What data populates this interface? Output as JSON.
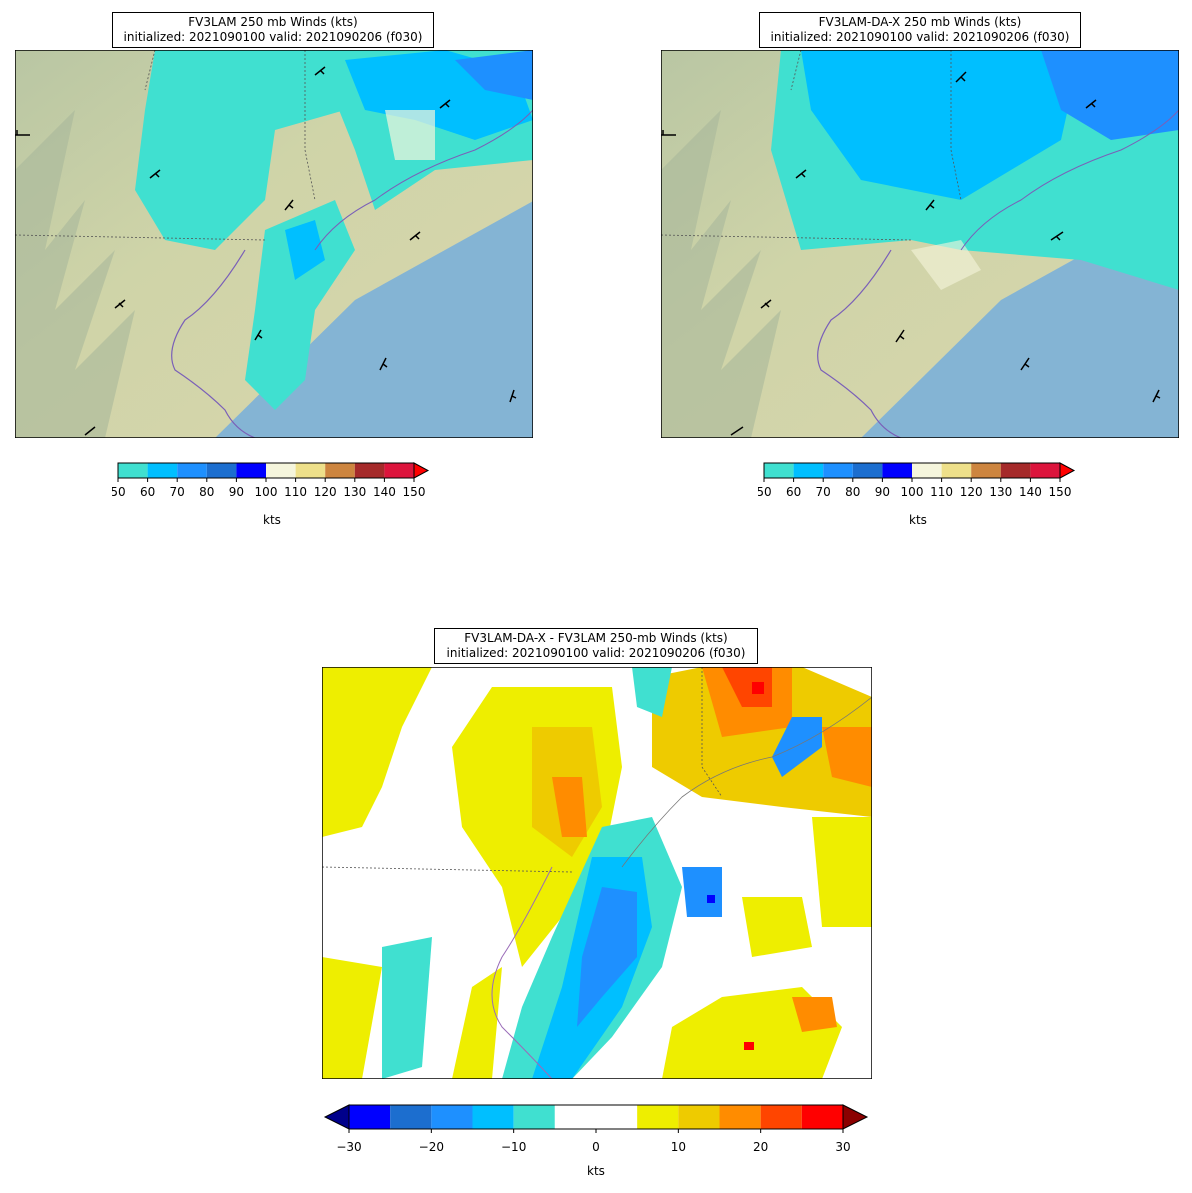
{
  "panels": {
    "left": {
      "title_line1": "FV3LAM 250 mb Winds (kts)",
      "title_line2": "initialized: 2021090100 valid: 2021090206 (f030)"
    },
    "right": {
      "title_line1": "FV3LAM-DA-X 250 mb Winds (kts)",
      "title_line2": "initialized: 2021090100 valid: 2021090206 (f030)"
    },
    "bottom": {
      "title_line1": "FV3LAM-DA-X - FV3LAM 250-mb Winds (kts)",
      "title_line2": "initialized: 2021090100 valid: 2021090206 (f030)"
    }
  },
  "wind_colorbar": {
    "label": "kts",
    "ticks": [
      "50",
      "60",
      "70",
      "80",
      "90",
      "100",
      "110",
      "120",
      "130",
      "140",
      "150"
    ],
    "colors": [
      "#40e0d0",
      "#00bfff",
      "#1e90ff",
      "#1c6ecf",
      "#0000ff",
      "#f5f5dc",
      "#eee08a",
      "#cd853f",
      "#a52a2a",
      "#dc143c"
    ],
    "extend_color": "#ff0000"
  },
  "diff_colorbar": {
    "label": "kts",
    "ticks": [
      "−30",
      "−20",
      "−10",
      "0",
      "10",
      "20",
      "30"
    ],
    "colors": [
      "#0000ff",
      "#1c6ecf",
      "#1e90ff",
      "#00bfff",
      "#40e0d0",
      "#ffffff",
      "#ffffff",
      "#eeee00",
      "#eecb00",
      "#ff8c00",
      "#ff4500",
      "#ff0000"
    ],
    "extend_low_color": "#00008b",
    "extend_high_color": "#8b0000"
  }
}
